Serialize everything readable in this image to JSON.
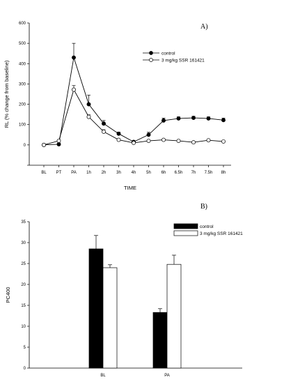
{
  "chart_data": [
    {
      "type": "line",
      "panel_label": "A)",
      "xlabel": "TIME",
      "ylabel": "RL (% change from baseline)",
      "categories": [
        "BL",
        "PT",
        "PA",
        "1h",
        "2h",
        "3h",
        "4h",
        "5h",
        "6h",
        "6.5h",
        "7h",
        "7.5h",
        "8h"
      ],
      "yticks": [
        "600",
        "500",
        "400",
        "300",
        "200",
        "100",
        "0"
      ],
      "ylim": [
        -100,
        600
      ],
      "legend_position": "top-right",
      "series": [
        {
          "name": "control",
          "marker": "filled-circle",
          "values": [
            0,
            3,
            430,
            200,
            105,
            55,
            15,
            50,
            120,
            130,
            133,
            130,
            122
          ],
          "errors": [
            3,
            5,
            70,
            45,
            15,
            8,
            5,
            12,
            12,
            8,
            8,
            8,
            10
          ]
        },
        {
          "name": "3 mg/kg SSR 161421",
          "marker": "open-circle",
          "values": [
            0,
            20,
            272,
            138,
            65,
            25,
            10,
            20,
            25,
            20,
            13,
            23,
            17
          ],
          "errors": [
            3,
            5,
            20,
            10,
            10,
            5,
            3,
            3,
            3,
            3,
            3,
            3,
            3
          ]
        }
      ],
      "grid": false
    },
    {
      "type": "bar",
      "panel_label": "B)",
      "ylabel": "PC400",
      "categories": [
        "BL",
        "PA"
      ],
      "yticks": [
        "35",
        "30",
        "25",
        "20",
        "15",
        "10",
        "5",
        "0"
      ],
      "ylim": [
        0,
        35
      ],
      "legend_position": "top-right",
      "series": [
        {
          "name": "control",
          "color": "#000000",
          "values": [
            28.5,
            13.3
          ],
          "errors": [
            3.2,
            0.9
          ]
        },
        {
          "name": "3 mg/kg SSR 161421",
          "color": "#ffffff",
          "values": [
            24.0,
            24.8
          ],
          "errors": [
            0.7,
            2.2
          ]
        }
      ],
      "grid": false
    }
  ]
}
